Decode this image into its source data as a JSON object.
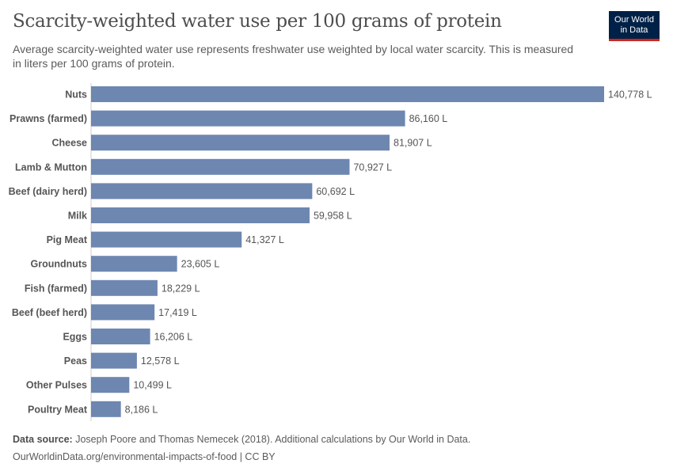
{
  "header": {
    "title": "Scarcity-weighted water use per 100 grams of protein",
    "subtitle": "Average scarcity-weighted water use represents freshwater use weighted by local water scarcity. This is measured in liters per 100 grams of protein.",
    "logo_line1": "Our World",
    "logo_line2": "in Data"
  },
  "chart_data": {
    "type": "bar",
    "orientation": "horizontal",
    "categories": [
      "Nuts",
      "Prawns (farmed)",
      "Cheese",
      "Lamb & Mutton",
      "Beef (dairy herd)",
      "Milk",
      "Pig Meat",
      "Groundnuts",
      "Fish (farmed)",
      "Beef (beef herd)",
      "Eggs",
      "Peas",
      "Other Pulses",
      "Poultry Meat"
    ],
    "values": [
      140778,
      86160,
      81907,
      70927,
      60692,
      59958,
      41327,
      23605,
      18229,
      17419,
      16206,
      12578,
      10499,
      8186
    ],
    "value_labels": [
      "140,778 L",
      "86,160 L",
      "81,907 L",
      "70,927 L",
      "60,692 L",
      "59,958 L",
      "41,327 L",
      "23,605 L",
      "18,229 L",
      "17,419 L",
      "16,206 L",
      "12,578 L",
      "10,499 L",
      "8,186 L"
    ],
    "unit": "L",
    "bar_color": "#6d87b0",
    "grid": false
  },
  "footer": {
    "source_label": "Data source:",
    "source_text": " Joseph Poore and Thomas Nemecek (2018). Additional calculations by Our World in Data.",
    "url_license": "OurWorldinData.org/environmental-impacts-of-food | CC BY"
  }
}
